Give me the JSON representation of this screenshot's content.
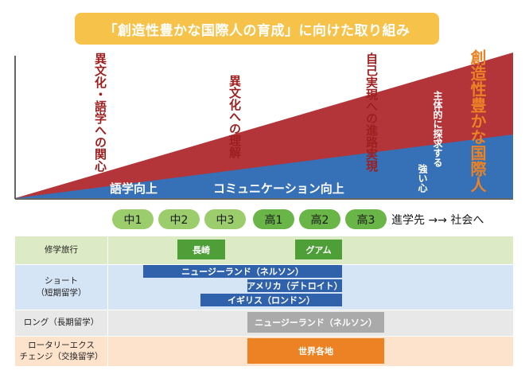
{
  "title": "「創造性豊かな国際人の育成」に向けた取り組み",
  "colors": {
    "title_bg": "#f6c24a",
    "red": "#b3353a",
    "blue": "#3670b6",
    "green": "#57a53c",
    "dark_green": "#4e9f38",
    "dark_blue": "#2f62ab",
    "gray": "#aaaaaa",
    "orange": "#ec8224"
  },
  "growth_labels": {
    "intercultural_interest": "異文化・語学への関心",
    "intercultural_understanding": "異文化への理解",
    "self_realization": "自己実現への進路実現",
    "creative_global_person": "創造性豊かな国際人",
    "proactive_inquiry": "主体的に探求する",
    "strong_heart": "強い心",
    "language_improvement": "語学向上",
    "communication_improvement": "コミュニケーション向上"
  },
  "grades": [
    "中1",
    "中2",
    "中3",
    "高1",
    "高2",
    "高3"
  ],
  "future_label": "進学先 →→ 社会へ",
  "programs": [
    {
      "label": "修学旅行",
      "bars": [
        "長崎",
        "グアム"
      ]
    },
    {
      "label": "ショート\n（短期留学）",
      "bars": [
        "ニュージーランド（ネルソン）",
        "アメリカ（デトロイト）",
        "イギリス（ロンドン）"
      ]
    },
    {
      "label": "ロング（長期留学）",
      "bars": [
        "ニュージーランド（ネルソン）"
      ]
    },
    {
      "label": "ロータリーエクス\nチェンジ（交換留学）",
      "bars": [
        "世界各地"
      ]
    }
  ]
}
